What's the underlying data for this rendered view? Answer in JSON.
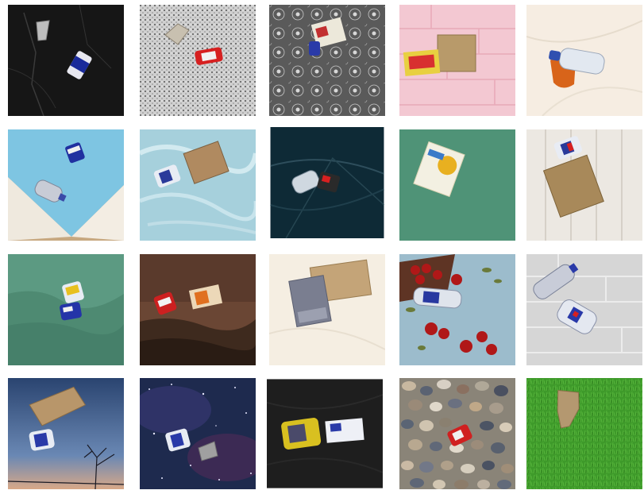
{
  "tiles": [
    {
      "background": "dark-marble",
      "items": [
        "plastic-cup",
        "blue-can"
      ]
    },
    {
      "background": "granite",
      "items": [
        "plastic-cup",
        "red-can"
      ]
    },
    {
      "background": "gray-floral-pattern",
      "items": [
        "carton-box",
        "blue-can"
      ]
    },
    {
      "background": "pink-brick",
      "items": [
        "cardboard-box",
        "snack-wrapper"
      ]
    },
    {
      "background": "cream-marble",
      "items": [
        "plastic-bottle",
        "orange-bag"
      ]
    },
    {
      "background": "blue-cardboard-corner",
      "items": [
        "blue-can",
        "plastic-bottle"
      ]
    },
    {
      "background": "icy-water",
      "items": [
        "cardboard-box",
        "blue-can"
      ]
    },
    {
      "background": "dark-plastic-sheet",
      "items": [
        "plastic-bottle",
        "dark-can"
      ]
    },
    {
      "background": "green-wall",
      "items": [
        "cereal-box"
      ]
    },
    {
      "background": "white-wood",
      "items": [
        "blue-can",
        "cardboard-box"
      ]
    },
    {
      "background": "green-foggy-forest",
      "items": [
        "yellow-can",
        "blue-can"
      ]
    },
    {
      "background": "brown-rocky-field",
      "items": [
        "red-can",
        "juice-carton"
      ]
    },
    {
      "background": "cream-marble",
      "items": [
        "cardboard-box",
        "gray-bag"
      ]
    },
    {
      "background": "tomatoes-on-blue-table",
      "items": [
        "plastic-bottle"
      ]
    },
    {
      "background": "gray-stone-wall",
      "items": [
        "plastic-bottle",
        "plastic-bottle"
      ]
    },
    {
      "background": "dusk-sky-trees",
      "items": [
        "cardboard-piece",
        "blue-can"
      ]
    },
    {
      "background": "starry-night",
      "items": [
        "blue-can",
        "gray-bag"
      ]
    },
    {
      "background": "black-slate",
      "items": [
        "yellow-wrapper",
        "carton-box"
      ]
    },
    {
      "background": "gravel",
      "items": [
        "red-can"
      ]
    },
    {
      "background": "grass",
      "items": [
        "cardboard-piece"
      ]
    }
  ]
}
